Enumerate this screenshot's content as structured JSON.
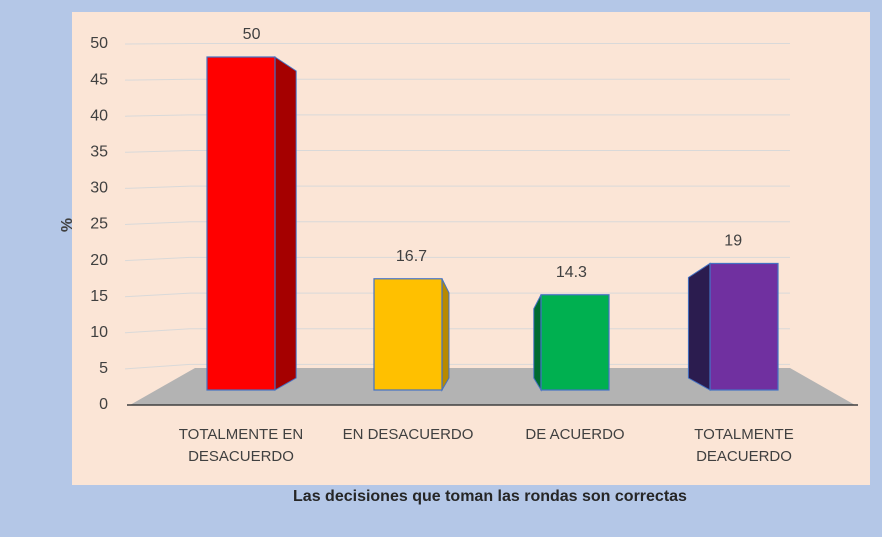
{
  "chart_data": {
    "type": "bar3d",
    "xlabel": "Las decisiones que toman las rondas son correctas",
    "ylabel": "%",
    "categories": [
      "TOTALMENTE EN DESACUERDO",
      "EN DESACUERDO",
      "DE ACUERDO",
      "TOTALMENTE DEACUERDO"
    ],
    "values": [
      50,
      16.7,
      14.3,
      19
    ],
    "colors": [
      "#ff0000",
      "#ffc000",
      "#00b050",
      "#7030a0"
    ],
    "side_colors": [
      "#a50000",
      "#b88a00",
      "#006b30",
      "#2b1c4f"
    ],
    "ylim": [
      0,
      50
    ],
    "yticks": [
      0,
      5,
      10,
      15,
      20,
      25,
      30,
      35,
      40,
      45,
      50
    ],
    "grid": true
  }
}
